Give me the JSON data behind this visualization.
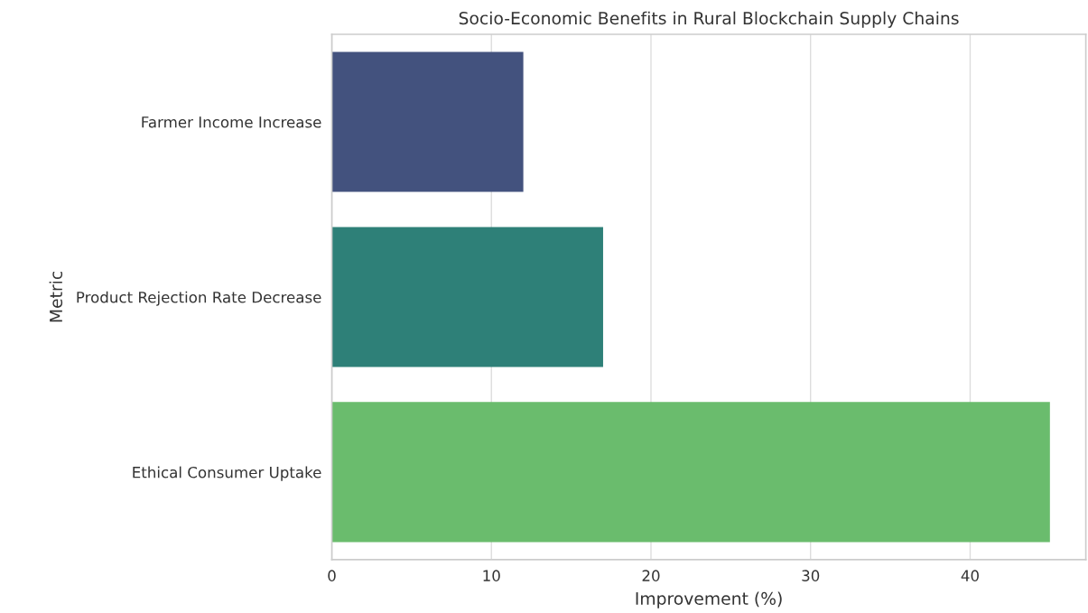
{
  "chart_data": {
    "type": "bar",
    "orientation": "horizontal",
    "title": "Socio-Economic Benefits in Rural Blockchain Supply Chains",
    "xlabel": "Improvement (%)",
    "ylabel": "Metric",
    "categories": [
      "Farmer Income Increase",
      "Product Rejection Rate Decrease",
      "Ethical Consumer Uptake"
    ],
    "values": [
      12,
      17,
      45
    ],
    "colors": [
      "#43527e",
      "#2e8078",
      "#6abc6d"
    ],
    "xlim": [
      0,
      47.25
    ],
    "xticks": [
      0,
      10,
      20,
      30,
      40
    ],
    "grid": "x"
  }
}
